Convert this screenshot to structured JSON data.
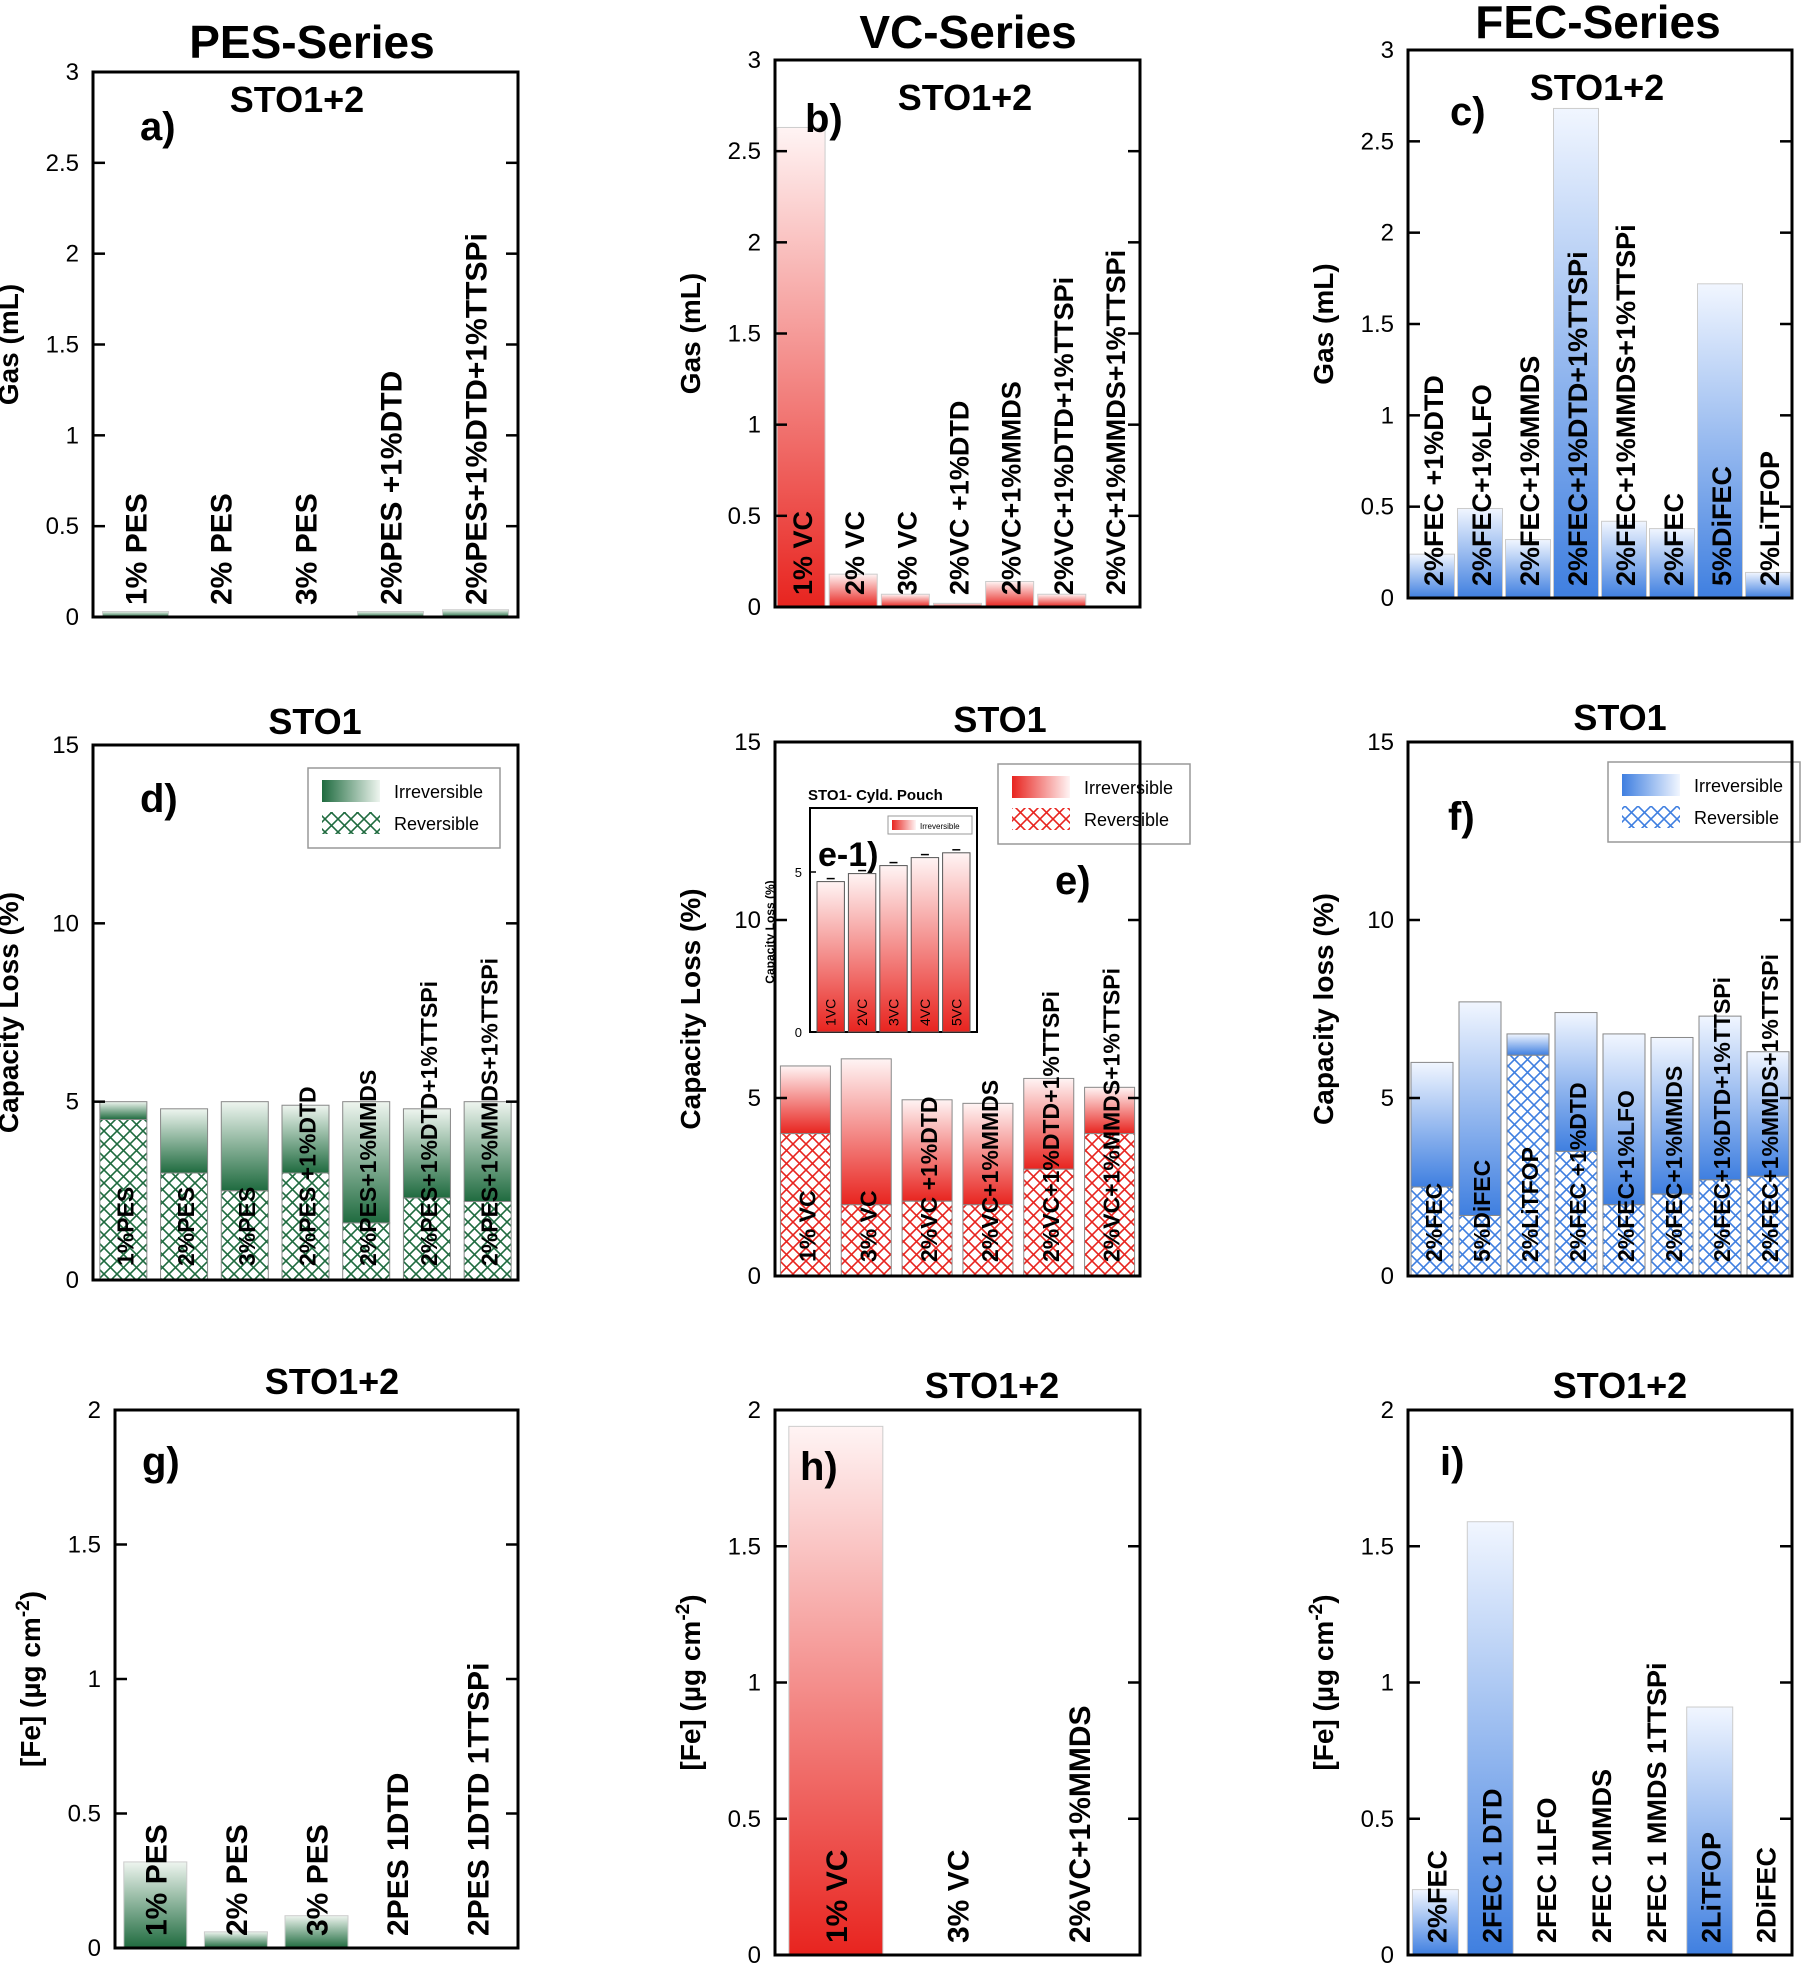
{
  "series_titles": [
    "PES-Series",
    "VC-Series",
    "FEC-Series"
  ],
  "colors": {
    "pes": "#1f6b3f",
    "vc": "#e8241f",
    "fec": "#3f7fe0"
  },
  "chart_data": [
    {
      "id": "a",
      "panel_label": "a)",
      "type": "bar",
      "title": "STO1+2",
      "ylabel": "Gas (mL)",
      "ylim": [
        0,
        3
      ],
      "yticks": [
        "0",
        "0.5",
        "1",
        "1.5",
        "2",
        "2.5",
        "3"
      ],
      "scheme": "pes",
      "categories": [
        "1% PES",
        "2% PES",
        "3% PES",
        "2%PES +1%DTD",
        "2%PES+1%DTD+1%TTSPi"
      ],
      "values": [
        0.03,
        0.0,
        0.0,
        0.03,
        0.04
      ]
    },
    {
      "id": "b",
      "panel_label": "b)",
      "type": "bar",
      "title": "STO1+2",
      "ylabel": "Gas (mL)",
      "ylim": [
        0,
        3
      ],
      "yticks": [
        "0",
        "0.5",
        "1",
        "1.5",
        "2",
        "2.5",
        "3"
      ],
      "scheme": "vc",
      "categories": [
        "1% VC",
        "2% VC",
        "3% VC",
        "2%VC +1%DTD",
        "2%VC+1%MMDS",
        "2%VC+1%DTD+1%TTSPi",
        "2%VC+1%MMDS+1%TTSPi"
      ],
      "values": [
        2.63,
        0.18,
        0.07,
        0.02,
        0.14,
        0.07,
        0.0
      ]
    },
    {
      "id": "c",
      "panel_label": "c)",
      "type": "bar",
      "title": "STO1+2",
      "ylabel": "Gas (mL)",
      "ylim": [
        0,
        3
      ],
      "yticks": [
        "0",
        "0.5",
        "1",
        "1.5",
        "2",
        "2.5",
        "3"
      ],
      "scheme": "fec",
      "categories": [
        "2%FEC +1%DTD",
        "2%FEC+1%LFO",
        "2%FEC+1%MMDS",
        "2%FEC+1%DTD+1%TTSPi",
        "2%FEC+1%MMDS+1%TTSPi",
        "2%FEC",
        "5%DiFEC",
        "2%LiTFOP"
      ],
      "values": [
        0.24,
        0.49,
        0.32,
        2.68,
        0.42,
        0.38,
        1.72,
        0.14
      ]
    },
    {
      "id": "d",
      "panel_label": "d)",
      "type": "stacked-bar",
      "title": "STO1",
      "ylabel": "Capacity Loss (%)",
      "ylim": [
        0,
        15
      ],
      "yticks": [
        "0",
        "5",
        "10",
        "15"
      ],
      "scheme": "pes",
      "legend": [
        "Irreversible",
        "Reversible"
      ],
      "categories": [
        "1%PES",
        "2%PES",
        "3%PES",
        "2%PES +1%DTD",
        "2%PES+1%MMDS",
        "2%PES+1%DTD+1%TTSPi",
        "2%PES+1%MMDS+1%TTSPi"
      ],
      "series": [
        {
          "name": "Reversible",
          "values": [
            4.5,
            3.0,
            2.5,
            3.0,
            1.6,
            2.3,
            2.2
          ]
        },
        {
          "name": "Irreversible",
          "values": [
            0.5,
            1.8,
            2.5,
            1.9,
            3.4,
            2.5,
            2.8
          ]
        }
      ]
    },
    {
      "id": "e",
      "panel_label": "e)",
      "type": "stacked-bar",
      "title": "STO1",
      "ylabel": "Capacity Loss (%)",
      "ylim": [
        0,
        15
      ],
      "yticks": [
        "0",
        "5",
        "10",
        "15"
      ],
      "scheme": "vc",
      "legend": [
        "Irreversible",
        "Reversible"
      ],
      "categories": [
        "1% VC",
        "3% VC",
        "2%VC +1%DTD",
        "2%VC+1%MMDS",
        "2%VC+1%DTD+1%TTSPi",
        "2%VC+1%MMDS+1%TTSPi"
      ],
      "series": [
        {
          "name": "Reversible",
          "values": [
            4.0,
            2.0,
            2.1,
            2.0,
            3.0,
            4.0
          ]
        },
        {
          "name": "Irreversible",
          "values": [
            1.9,
            4.1,
            2.85,
            2.85,
            2.55,
            1.3
          ]
        }
      ],
      "inset": {
        "panel_label": "e-1)",
        "title": "STO1- Cyld. Pouch",
        "ylabel": "Capacity Loss (%)",
        "ylim": [
          0,
          7
        ],
        "yticks": [
          "0",
          "5"
        ],
        "legend": [
          "Irreversible"
        ],
        "categories": [
          "1VC",
          "2VC",
          "3VC",
          "4VC",
          "5VC"
        ],
        "values": [
          4.7,
          4.95,
          5.2,
          5.45,
          5.6
        ]
      }
    },
    {
      "id": "f",
      "panel_label": "f)",
      "type": "stacked-bar",
      "title": "STO1",
      "ylabel": "Capacity loss (%)",
      "ylim": [
        0,
        15
      ],
      "yticks": [
        "0",
        "5",
        "10",
        "15"
      ],
      "scheme": "fec",
      "legend": [
        "Irreversible",
        "Reversible"
      ],
      "categories": [
        "2%FEC",
        "5%DiFEC",
        "2%LiTFOP",
        "2%FEC +1%DTD",
        "2%FEC+1%LFO",
        "2%FEC+1%MMDS",
        "2%FEC+1%DTD+1%TTSPi",
        "2%FEC+1%MMDS+1%TTSPi"
      ],
      "series": [
        {
          "name": "Reversible",
          "values": [
            2.5,
            1.7,
            6.2,
            3.5,
            2.0,
            2.3,
            2.7,
            2.8
          ]
        },
        {
          "name": "Irreversible",
          "values": [
            3.5,
            6.0,
            0.6,
            3.9,
            4.8,
            4.4,
            4.6,
            3.5
          ]
        }
      ]
    },
    {
      "id": "g",
      "panel_label": "g)",
      "type": "bar",
      "title": "STO1+2",
      "ylabel": "[Fe] (µg cm-2)",
      "ylabel_main": "[Fe] (µg cm",
      "ylabel_sup": "-2",
      "ylabel_end": ")",
      "ylim": [
        0,
        2
      ],
      "yticks": [
        "0",
        "0.5",
        "1",
        "1.5",
        "2"
      ],
      "scheme": "pes",
      "categories": [
        "1% PES",
        "2% PES",
        "3% PES",
        "2PES 1DTD",
        "2PES 1DTD 1TTSPi"
      ],
      "values": [
        0.32,
        0.06,
        0.12,
        0.0,
        0.0
      ]
    },
    {
      "id": "h",
      "panel_label": "h)",
      "type": "bar",
      "title": "STO1+2",
      "ylabel": "[Fe] (µg cm-2)",
      "ylabel_main": "[Fe] (µg cm",
      "ylabel_sup": "-2",
      "ylabel_end": ")",
      "ylim": [
        0,
        2
      ],
      "yticks": [
        "0",
        "0.5",
        "1",
        "1.5",
        "2"
      ],
      "scheme": "vc",
      "categories": [
        "1% VC",
        "3% VC",
        "2%VC+1%MMDS"
      ],
      "values": [
        1.94,
        0.0,
        0.0
      ]
    },
    {
      "id": "i",
      "panel_label": "i)",
      "type": "bar",
      "title": "STO1+2",
      "ylabel": "[Fe] (µg cm-2)",
      "ylabel_main": "[Fe] (µg cm",
      "ylabel_sup": "-2",
      "ylabel_end": ")",
      "ylim": [
        0,
        2
      ],
      "yticks": [
        "0",
        "0.5",
        "1",
        "1.5",
        "2"
      ],
      "scheme": "fec",
      "categories": [
        "2%FEC",
        "2FEC 1 DTD",
        "2FEC 1LFO",
        "2FEC 1MMDS",
        "2FEC 1 MMDS 1TTSPi",
        "2LiTFOP",
        "2DiFEC"
      ],
      "values": [
        0.24,
        1.59,
        0.0,
        0.0,
        0.0,
        0.91,
        0.0
      ]
    }
  ]
}
